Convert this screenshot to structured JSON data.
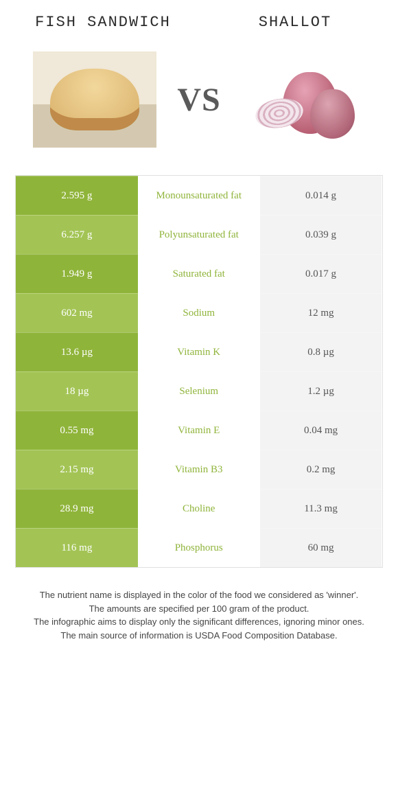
{
  "colors": {
    "left_food": "#8fb43a",
    "right_food": "#b85f73",
    "left_cell_bg_strong": "#8fb43a",
    "left_cell_bg_weak": "#a3c455",
    "right_cell_bg": "#f3f3f3",
    "right_cell_text": "#555555",
    "background": "#ffffff"
  },
  "fonts": {
    "title_family": "Courier New",
    "title_size_pt": 16,
    "value_size_pt": 11,
    "footnote_size_pt": 10
  },
  "header": {
    "left_title": "Fish Sandwich",
    "right_title": "Shallot",
    "vs_label": "VS"
  },
  "comparison": {
    "type": "table",
    "columns": [
      "left_value",
      "nutrient",
      "right_value"
    ],
    "rows": [
      {
        "left": "2.595 g",
        "nutrient": "Monounsaturated fat",
        "right": "0.014 g",
        "winner": "left"
      },
      {
        "left": "6.257 g",
        "nutrient": "Polyunsaturated fat",
        "right": "0.039 g",
        "winner": "left"
      },
      {
        "left": "1.949 g",
        "nutrient": "Saturated fat",
        "right": "0.017 g",
        "winner": "left"
      },
      {
        "left": "602 mg",
        "nutrient": "Sodium",
        "right": "12 mg",
        "winner": "left"
      },
      {
        "left": "13.6 µg",
        "nutrient": "Vitamin K",
        "right": "0.8 µg",
        "winner": "left"
      },
      {
        "left": "18 µg",
        "nutrient": "Selenium",
        "right": "1.2 µg",
        "winner": "left"
      },
      {
        "left": "0.55 mg",
        "nutrient": "Vitamin E",
        "right": "0.04 mg",
        "winner": "left"
      },
      {
        "left": "2.15 mg",
        "nutrient": "Vitamin B3",
        "right": "0.2 mg",
        "winner": "left"
      },
      {
        "left": "28.9 mg",
        "nutrient": "Choline",
        "right": "11.3 mg",
        "winner": "left"
      },
      {
        "left": "116 mg",
        "nutrient": "Phosphorus",
        "right": "60 mg",
        "winner": "left"
      }
    ]
  },
  "footnotes": [
    "The nutrient name is displayed in the color of the food we considered as 'winner'.",
    "The amounts are specified per 100 gram of the product.",
    "The infographic aims to display only the significant differences, ignoring minor ones.",
    "The main source of information is USDA Food Composition Database."
  ]
}
